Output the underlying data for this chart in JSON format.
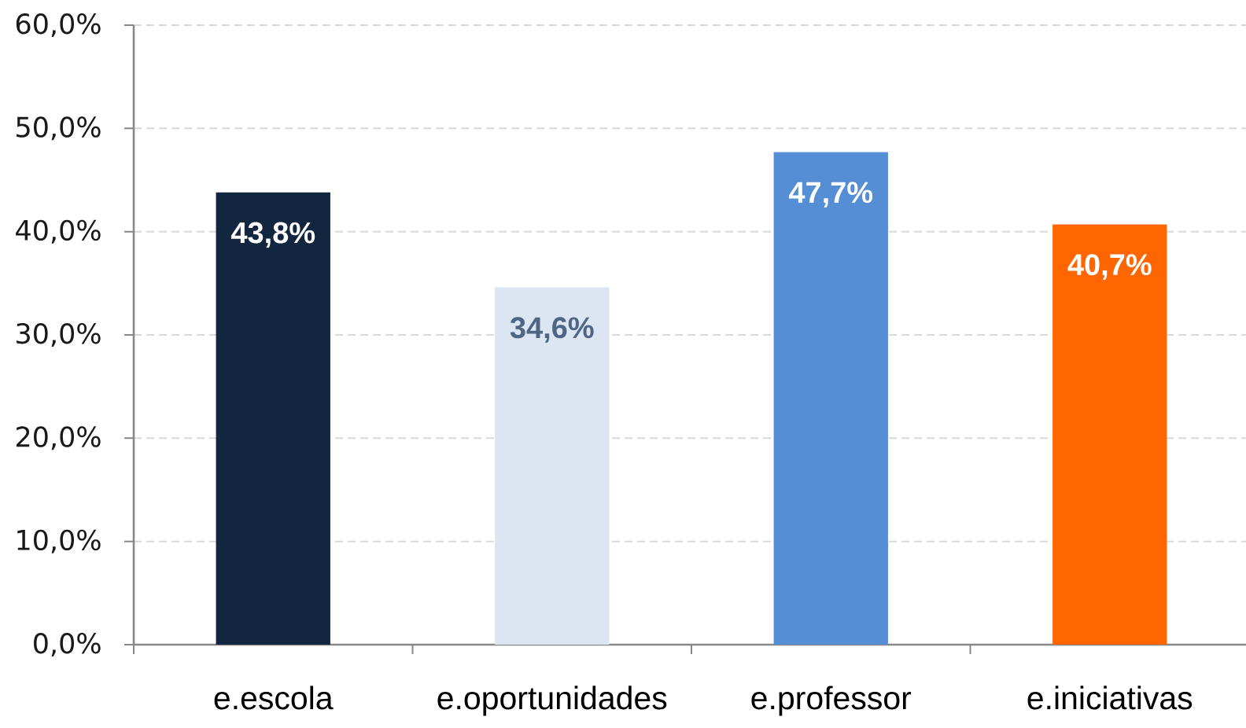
{
  "chart_data": {
    "type": "bar",
    "categories": [
      "e.escola",
      "e.oportunidades",
      "e.professor",
      "e.iniciativas"
    ],
    "values": [
      43.8,
      34.6,
      47.7,
      40.7
    ],
    "colors": [
      "#12263f",
      "#dce6f2",
      "#558ed5",
      "#ff6600"
    ],
    "value_labels": [
      "43,8%",
      "34,6%",
      "47,7%",
      "40,7%"
    ],
    "ylim": [
      0,
      60
    ],
    "yticks": [
      {
        "value": 0,
        "label": "0,0%"
      },
      {
        "value": 10,
        "label": "10,0%"
      },
      {
        "value": 20,
        "label": "20,0%"
      },
      {
        "value": 30,
        "label": "30,0%"
      },
      {
        "value": 40,
        "label": "40,0%"
      },
      {
        "value": 50,
        "label": "50,0%"
      },
      {
        "value": 60,
        "label": "60,0%"
      }
    ],
    "grid": "y"
  }
}
